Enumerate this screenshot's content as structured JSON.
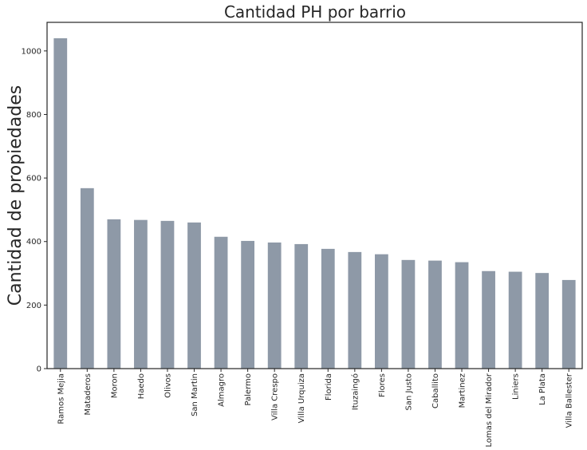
{
  "chart_data": {
    "type": "bar",
    "title": "Cantidad PH por barrio",
    "xlabel": "",
    "ylabel": "Cantidad de propiedades",
    "categories": [
      "Ramos Mejia",
      "Mataderos",
      "Moron",
      "Haedo",
      "Olivos",
      "San Martin",
      "Almagro",
      "Palermo",
      "Villa Crespo",
      "Villa Urquiza",
      "Florida",
      "Ituzaingó",
      "Flores",
      "San Justo",
      "Caballito",
      "Martinez",
      "Lomas del Mirador",
      "Liniers",
      "La Plata",
      "Villa Ballester"
    ],
    "values": [
      1040,
      568,
      470,
      468,
      465,
      460,
      415,
      402,
      397,
      392,
      377,
      367,
      360,
      342,
      340,
      335,
      307,
      305,
      301,
      279
    ],
    "yticks": [
      0,
      200,
      400,
      600,
      800,
      1000
    ],
    "ylim": [
      0,
      1090
    ],
    "grid": false,
    "bar_color": "#8e99a7",
    "axes_color": "#262626"
  }
}
